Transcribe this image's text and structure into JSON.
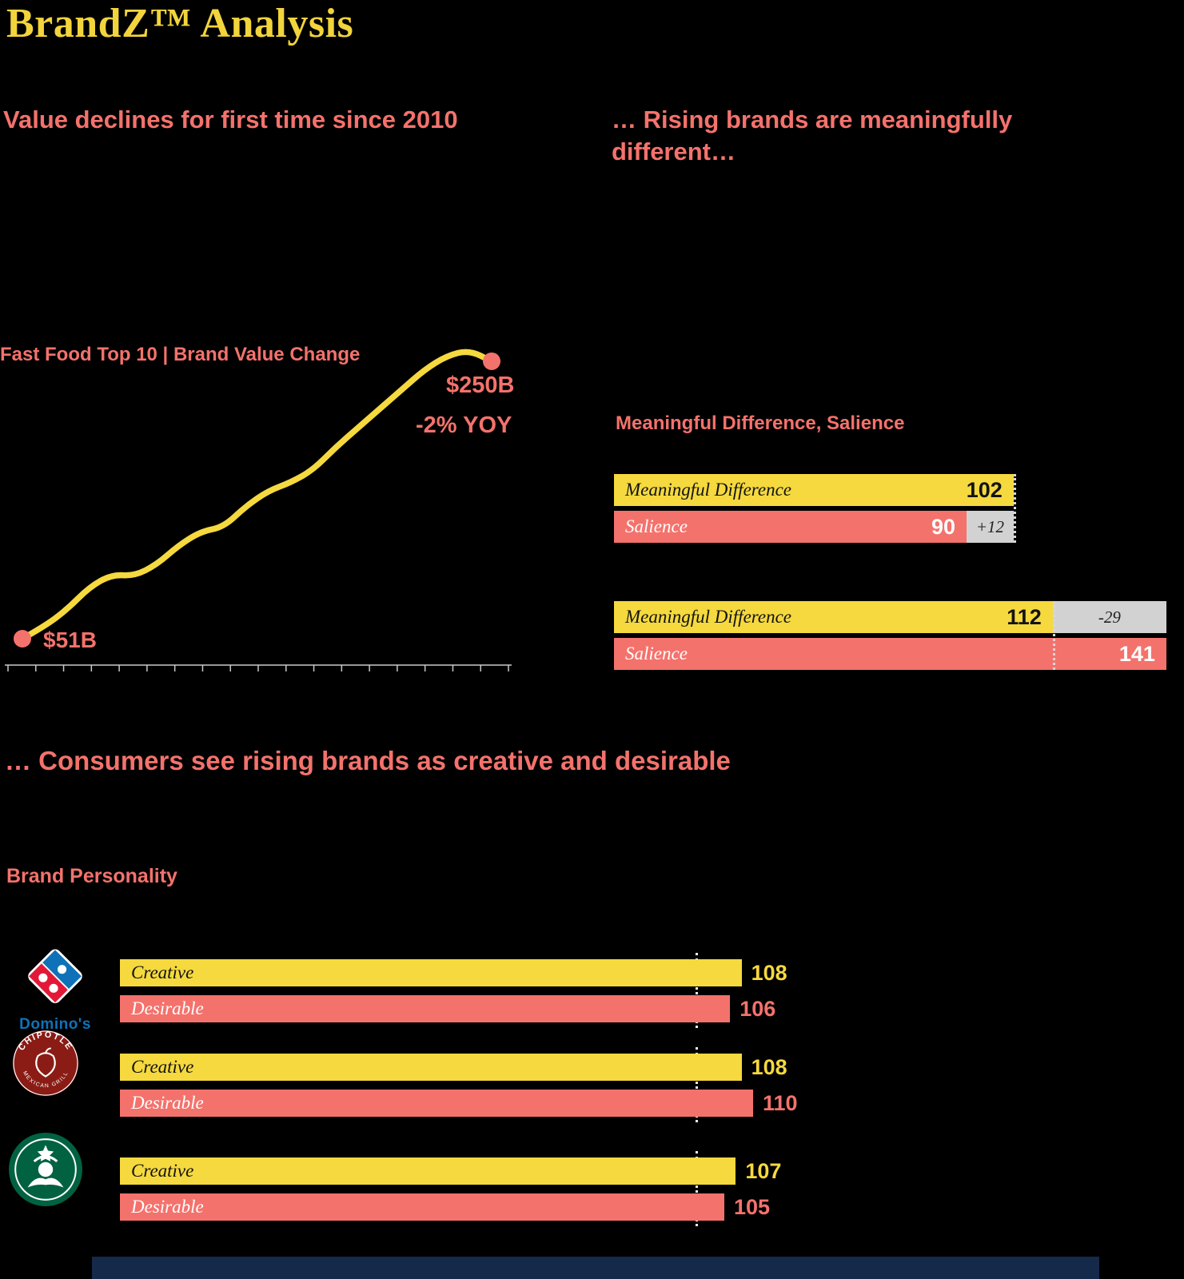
{
  "title": "BrandZ™ Analysis",
  "headings": {
    "left": "Value declines for first time since 2010",
    "right": "… Rising brands are meaningfully different…",
    "bottom": "… Consumers see rising brands as creative and desirable"
  },
  "colors": {
    "background": "#000000",
    "yellow": "#F5D93E",
    "coral": "#F4726C",
    "gray_chip": "#D2D2D2",
    "footer_navy": "#15294A",
    "dominos_blue": "#0F72B8",
    "dominos_red": "#E31837",
    "chipotle_maroon": "#8A1C15",
    "starbucks_green": "#006241"
  },
  "line_chart": {
    "title": "Fast Food Top 10 | Brand Value Change",
    "start_label": "$51B",
    "end_label": "$250B",
    "annotation": "-2% YOY"
  },
  "md_salience": {
    "title": "Meaningful Difference, Salience"
  },
  "personality": {
    "title": "Brand Personality"
  },
  "logos": {
    "dominos_wordmark": "Domino's",
    "chipotle_top": "CHIPOTLE",
    "chipotle_bottom": "MEXICAN GRILL"
  },
  "chart_data": [
    {
      "type": "line",
      "title": "Fast Food Top 10 | Brand Value Change",
      "series": [
        {
          "name": "Fast Food Top 10 Brand Value ($B)",
          "values": [
            51,
            60,
            72,
            88,
            97,
            96,
            104,
            118,
            128,
            131,
            146,
            157,
            163,
            172,
            188,
            202,
            216,
            230,
            244,
            254,
            258,
            250
          ]
        }
      ],
      "start_label": "$51B",
      "end_label": "$250B",
      "annotation": "-2% YOY",
      "ylim": [
        40,
        270
      ],
      "x_tick_count": 19,
      "grid": false,
      "values_estimated_between_endpoints": true
    },
    {
      "type": "bar",
      "title": "Meaningful Difference, Salience",
      "groups": [
        {
          "bars": [
            {
              "label": "Meaningful Difference",
              "value": 102,
              "color": "#F5D93E"
            },
            {
              "label": "Salience",
              "value": 90,
              "color": "#F4726C"
            }
          ],
          "delta": "+12"
        },
        {
          "bars": [
            {
              "label": "Meaningful Difference",
              "value": 112,
              "color": "#F5D93E"
            },
            {
              "label": "Salience",
              "value": 141,
              "color": "#F4726C"
            }
          ],
          "delta": "-29"
        }
      ]
    },
    {
      "type": "bar",
      "title": "Brand Personality",
      "categories": [
        "Domino's",
        "Chipotle",
        "Starbucks"
      ],
      "series": [
        {
          "name": "Creative",
          "color": "#F5D93E",
          "values": [
            108,
            108,
            107
          ]
        },
        {
          "name": "Desirable",
          "color": "#F4726C",
          "values": [
            106,
            110,
            105
          ]
        }
      ],
      "reference_line": 100,
      "legend": "none"
    }
  ]
}
